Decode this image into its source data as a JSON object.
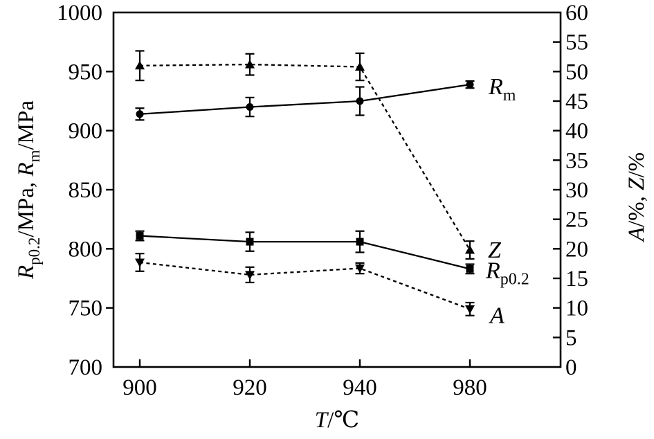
{
  "colors": {
    "foreground": "#000000",
    "background": "#ffffff"
  },
  "chart_data": {
    "type": "line",
    "title": "",
    "xlabel": "T/℃",
    "xlabel_segments": [
      {
        "t": "T",
        "style": "i"
      },
      {
        "t": "/℃"
      }
    ],
    "x_axis": {
      "categories": [
        "900",
        "920",
        "940",
        "980"
      ],
      "note": "categories equally spaced"
    },
    "left_axis": {
      "title_text": "R_p0.2/MPa, R_m/MPa",
      "title_segments": [
        {
          "t": "R",
          "style": "i"
        },
        {
          "t": "p0.2",
          "style": "sub"
        },
        {
          "t": "/MPa, "
        },
        {
          "t": "R",
          "style": "i"
        },
        {
          "t": "m",
          "style": "sub"
        },
        {
          "t": "/MPa"
        }
      ],
      "min": 700,
      "max": 1000,
      "step": 50,
      "tick_labels": [
        "700",
        "750",
        "800",
        "850",
        "900",
        "950",
        "1000"
      ]
    },
    "right_axis": {
      "title_text": "A/%, Z/%",
      "title_segments": [
        {
          "t": "A",
          "style": "i"
        },
        {
          "t": "/%, "
        },
        {
          "t": "Z",
          "style": "i"
        },
        {
          "t": "/%"
        }
      ],
      "min": 0,
      "max": 60,
      "step": 5,
      "tick_labels": [
        "0",
        "5",
        "10",
        "15",
        "20",
        "25",
        "30",
        "35",
        "40",
        "45",
        "50",
        "55",
        "60"
      ]
    },
    "series": [
      {
        "name": "Rm",
        "label_text": "R_m",
        "label_segments": [
          {
            "t": "R",
            "style": "i"
          },
          {
            "t": "m",
            "style": "sub"
          }
        ],
        "axis": "left",
        "marker": "circle",
        "line": "solid",
        "values": [
          914,
          920,
          925,
          939
        ],
        "errors": [
          5,
          8,
          12,
          3
        ],
        "label_offset": [
          27,
          14
        ]
      },
      {
        "name": "Rp0.2",
        "label_text": "R_p0.2",
        "label_segments": [
          {
            "t": "R",
            "style": "i"
          },
          {
            "t": "p0.2",
            "style": "sub"
          }
        ],
        "axis": "left",
        "marker": "square",
        "line": "solid",
        "values": [
          811,
          806,
          806,
          783
        ],
        "errors": [
          4,
          8,
          9,
          4
        ],
        "label_offset": [
          23,
          13
        ]
      },
      {
        "name": "Z",
        "label_text": "Z",
        "label_segments": [
          {
            "t": "Z",
            "style": "i"
          }
        ],
        "axis": "right",
        "marker": "triangle-up",
        "line": "dashed",
        "values": [
          51.0,
          51.2,
          50.8,
          19.8
        ],
        "errors": [
          2.5,
          1.8,
          2.3,
          1.5
        ],
        "label_offset": [
          26,
          11
        ]
      },
      {
        "name": "A",
        "label_text": "A",
        "label_segments": [
          {
            "t": "A",
            "style": "i"
          }
        ],
        "axis": "right",
        "marker": "triangle-down",
        "line": "dashed",
        "values": [
          17.7,
          15.6,
          16.7,
          9.8
        ],
        "errors": [
          1.5,
          1.3,
          0.9,
          1.1
        ],
        "label_offset": [
          29,
          20
        ]
      }
    ]
  }
}
